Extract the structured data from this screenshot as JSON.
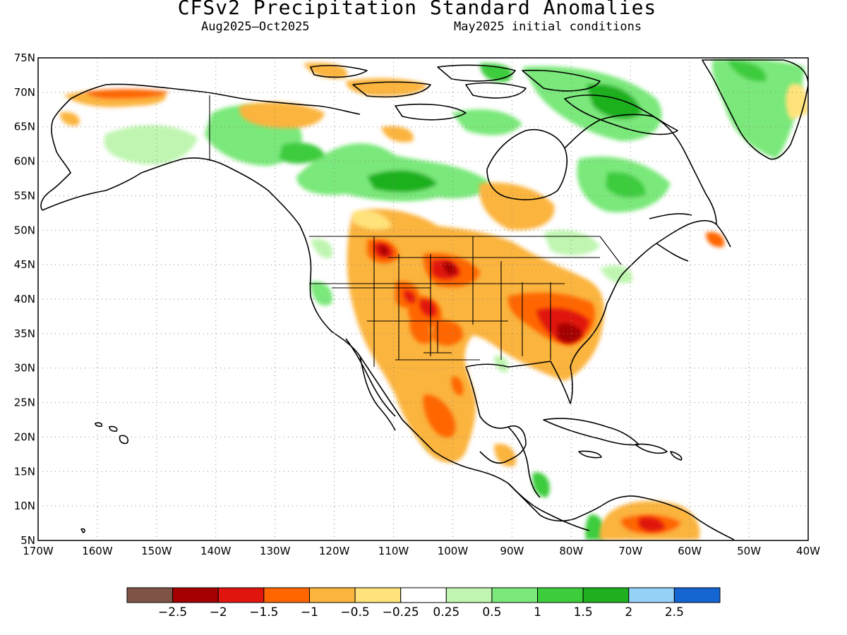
{
  "title": "CFSv2 Precipitation Standard Anomalies",
  "subtitle_left": "Aug2025–Oct2025",
  "subtitle_right": "May2025 initial conditions",
  "map": {
    "lon_range": [
      -170,
      -40
    ],
    "lat_range": [
      5,
      75
    ],
    "grid": "dotted",
    "lat_ticks": [
      "5N",
      "10N",
      "15N",
      "20N",
      "25N",
      "30N",
      "35N",
      "40N",
      "45N",
      "50N",
      "55N",
      "60N",
      "65N",
      "70N",
      "75N"
    ],
    "lon_ticks": [
      "170W",
      "160W",
      "150W",
      "140W",
      "130W",
      "120W",
      "110W",
      "100W",
      "90W",
      "80W",
      "70W",
      "60W",
      "50W",
      "40W"
    ]
  },
  "colorbar": {
    "colors": [
      "#7f5447",
      "#a50000",
      "#e0150e",
      "#ff6600",
      "#fbb43c",
      "#ffe37a",
      "#ffffff",
      "#bff5b0",
      "#7ae87a",
      "#3ccc3c",
      "#1fb01f",
      "#96d1f8",
      "#1464d2"
    ],
    "labels": [
      "−2.5",
      "−2",
      "−1.5",
      "−1",
      "−0.5",
      "−0.25",
      "0.25",
      "0.5",
      "1",
      "1.5",
      "2",
      "2.5"
    ]
  }
}
